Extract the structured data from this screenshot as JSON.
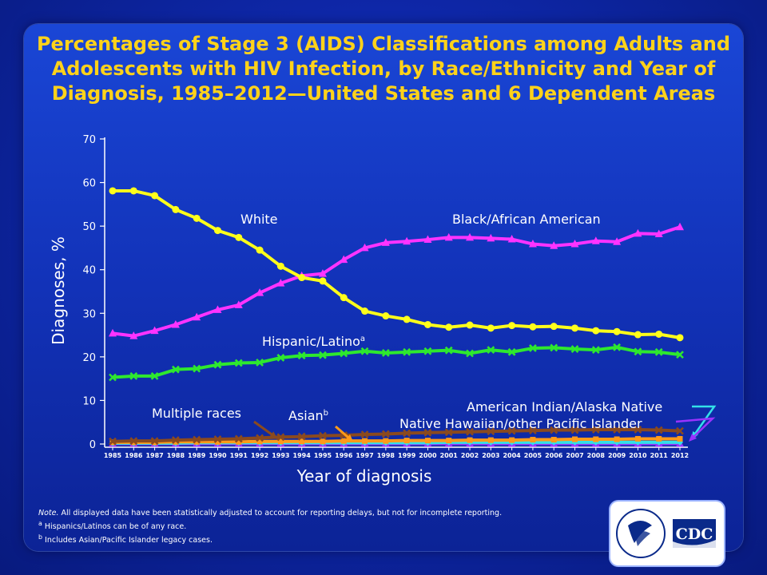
{
  "title": "Percentages of Stage 3 (AIDS) Classifications among Adults and Adolescents with HIV Infection, by Race/Ethnicity and Year of Diagnosis, 1985–2012—United States and 6 Dependent Areas",
  "notes": {
    "note_label": "Note.",
    "note_text": " All displayed data have been statistically adjusted to account for reporting delays, but not for incomplete reporting.",
    "footnote_a_marker": "a",
    "footnote_a_text": " Hispanics/Latinos can be of any race.",
    "footnote_b_marker": "b",
    "footnote_b_text": " Includes Asian/Pacific Islander legacy cases."
  },
  "logo": {
    "text": "CDC"
  },
  "chart_data": {
    "type": "line",
    "xlabel": "Year of diagnosis",
    "ylabel": "Diagnoses, %",
    "ylim": [
      0,
      70
    ],
    "yticks": [
      0,
      10,
      20,
      30,
      40,
      50,
      60,
      70
    ],
    "grid": false,
    "legend": "inline labels",
    "x": [
      "1985",
      "1986",
      "1987",
      "1988",
      "1989",
      "1990",
      "1991",
      "1992",
      "1993",
      "1994",
      "1995",
      "1996",
      "1997",
      "1998",
      "1999",
      "2000",
      "2001",
      "2002",
      "2003",
      "2004",
      "2005",
      "2006",
      "2007",
      "2008",
      "2009",
      "2010",
      "2011",
      "2012"
    ],
    "series": [
      {
        "name": "White",
        "color": "#ffff1a",
        "marker": "circle",
        "values": [
          58.1,
          58.1,
          57.0,
          53.8,
          51.8,
          49.0,
          47.4,
          44.5,
          40.8,
          38.2,
          37.4,
          33.6,
          30.5,
          29.4,
          28.6,
          27.4,
          26.8,
          27.3,
          26.6,
          27.2,
          26.9,
          27.0,
          26.6,
          26.0,
          25.8,
          25.1,
          25.2,
          24.4
        ]
      },
      {
        "name": "Black/African American",
        "color": "#ff33ff",
        "marker": "triangle",
        "values": [
          25.4,
          24.8,
          26.0,
          27.4,
          29.1,
          30.8,
          31.9,
          34.7,
          36.9,
          38.6,
          39.1,
          42.3,
          45.0,
          46.2,
          46.5,
          46.9,
          47.4,
          47.4,
          47.2,
          47.0,
          45.9,
          45.5,
          45.9,
          46.6,
          46.4,
          48.3,
          48.2,
          49.8
        ]
      },
      {
        "name": "Hispanic/Latino",
        "label_sup": "a",
        "color": "#2ee82e",
        "marker": "x",
        "values": [
          15.3,
          15.6,
          15.6,
          17.1,
          17.3,
          18.2,
          18.6,
          18.7,
          19.8,
          20.3,
          20.4,
          20.8,
          21.3,
          20.9,
          21.1,
          21.3,
          21.5,
          20.8,
          21.6,
          21.1,
          22.0,
          22.1,
          21.8,
          21.6,
          22.2,
          21.2,
          21.1,
          20.5
        ]
      },
      {
        "name": "Multiple races",
        "color": "#8b4a1e",
        "marker": "x",
        "values": [
          0.6,
          0.7,
          0.7,
          0.9,
          1.0,
          1.1,
          1.2,
          1.4,
          1.6,
          1.7,
          1.9,
          2.0,
          2.2,
          2.3,
          2.5,
          2.6,
          2.7,
          2.8,
          2.9,
          3.0,
          3.1,
          3.2,
          3.2,
          3.3,
          3.3,
          3.3,
          3.2,
          3.0
        ]
      },
      {
        "name": "Asian",
        "label_sup": "b",
        "color": "#ff9a1a",
        "marker": "square",
        "values": [
          0.4,
          0.4,
          0.4,
          0.5,
          0.5,
          0.5,
          0.5,
          0.6,
          0.6,
          0.6,
          0.6,
          0.7,
          0.7,
          0.7,
          0.8,
          0.8,
          0.8,
          0.9,
          0.9,
          0.9,
          1.0,
          1.0,
          1.1,
          1.1,
          1.1,
          1.2,
          1.2,
          1.2
        ]
      },
      {
        "name": "American Indian/Alaska Native",
        "color": "#33e0e8",
        "marker": "diamond",
        "values": [
          0.2,
          0.2,
          0.2,
          0.2,
          0.3,
          0.3,
          0.3,
          0.3,
          0.3,
          0.3,
          0.3,
          0.3,
          0.3,
          0.3,
          0.3,
          0.3,
          0.4,
          0.4,
          0.4,
          0.4,
          0.4,
          0.4,
          0.4,
          0.4,
          0.4,
          0.4,
          0.4,
          0.4
        ]
      },
      {
        "name": "Native Hawaiian/other Pacific Islander",
        "color": "#9933ff",
        "marker": "triangle",
        "values": [
          0.1,
          0.1,
          0.1,
          0.1,
          0.1,
          0.1,
          0.1,
          0.1,
          0.1,
          0.1,
          0.1,
          0.1,
          0.1,
          0.1,
          0.1,
          0.1,
          0.1,
          0.1,
          0.1,
          0.1,
          0.1,
          0.1,
          0.1,
          0.1,
          0.1,
          0.1,
          0.1,
          0.1
        ]
      }
    ]
  }
}
